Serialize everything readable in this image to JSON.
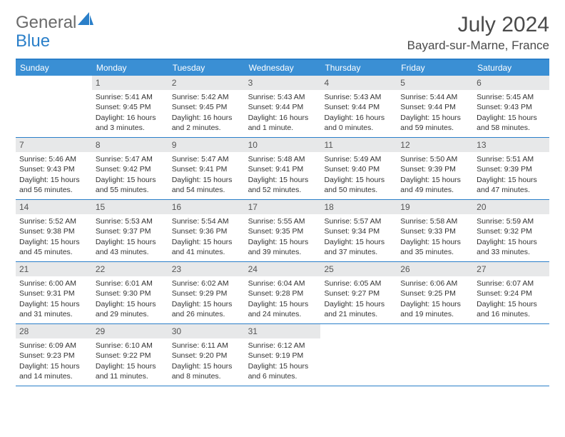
{
  "brand": {
    "part1": "General",
    "part2": "Blue"
  },
  "title": "July 2024",
  "location": "Bayard-sur-Marne, France",
  "colors": {
    "header_bar": "#3a8fd4",
    "header_border": "#2a7fc9",
    "daynum_bg": "#e7e8e9",
    "text": "#333333",
    "logo_gray": "#6a6a6a",
    "logo_blue": "#2a7fc9"
  },
  "days_of_week": [
    "Sunday",
    "Monday",
    "Tuesday",
    "Wednesday",
    "Thursday",
    "Friday",
    "Saturday"
  ],
  "weeks": [
    [
      {
        "n": "",
        "sunrise": "",
        "sunset": "",
        "daylight": ""
      },
      {
        "n": "1",
        "sunrise": "Sunrise: 5:41 AM",
        "sunset": "Sunset: 9:45 PM",
        "daylight": "Daylight: 16 hours and 3 minutes."
      },
      {
        "n": "2",
        "sunrise": "Sunrise: 5:42 AM",
        "sunset": "Sunset: 9:45 PM",
        "daylight": "Daylight: 16 hours and 2 minutes."
      },
      {
        "n": "3",
        "sunrise": "Sunrise: 5:43 AM",
        "sunset": "Sunset: 9:44 PM",
        "daylight": "Daylight: 16 hours and 1 minute."
      },
      {
        "n": "4",
        "sunrise": "Sunrise: 5:43 AM",
        "sunset": "Sunset: 9:44 PM",
        "daylight": "Daylight: 16 hours and 0 minutes."
      },
      {
        "n": "5",
        "sunrise": "Sunrise: 5:44 AM",
        "sunset": "Sunset: 9:44 PM",
        "daylight": "Daylight: 15 hours and 59 minutes."
      },
      {
        "n": "6",
        "sunrise": "Sunrise: 5:45 AM",
        "sunset": "Sunset: 9:43 PM",
        "daylight": "Daylight: 15 hours and 58 minutes."
      }
    ],
    [
      {
        "n": "7",
        "sunrise": "Sunrise: 5:46 AM",
        "sunset": "Sunset: 9:43 PM",
        "daylight": "Daylight: 15 hours and 56 minutes."
      },
      {
        "n": "8",
        "sunrise": "Sunrise: 5:47 AM",
        "sunset": "Sunset: 9:42 PM",
        "daylight": "Daylight: 15 hours and 55 minutes."
      },
      {
        "n": "9",
        "sunrise": "Sunrise: 5:47 AM",
        "sunset": "Sunset: 9:41 PM",
        "daylight": "Daylight: 15 hours and 54 minutes."
      },
      {
        "n": "10",
        "sunrise": "Sunrise: 5:48 AM",
        "sunset": "Sunset: 9:41 PM",
        "daylight": "Daylight: 15 hours and 52 minutes."
      },
      {
        "n": "11",
        "sunrise": "Sunrise: 5:49 AM",
        "sunset": "Sunset: 9:40 PM",
        "daylight": "Daylight: 15 hours and 50 minutes."
      },
      {
        "n": "12",
        "sunrise": "Sunrise: 5:50 AM",
        "sunset": "Sunset: 9:39 PM",
        "daylight": "Daylight: 15 hours and 49 minutes."
      },
      {
        "n": "13",
        "sunrise": "Sunrise: 5:51 AM",
        "sunset": "Sunset: 9:39 PM",
        "daylight": "Daylight: 15 hours and 47 minutes."
      }
    ],
    [
      {
        "n": "14",
        "sunrise": "Sunrise: 5:52 AM",
        "sunset": "Sunset: 9:38 PM",
        "daylight": "Daylight: 15 hours and 45 minutes."
      },
      {
        "n": "15",
        "sunrise": "Sunrise: 5:53 AM",
        "sunset": "Sunset: 9:37 PM",
        "daylight": "Daylight: 15 hours and 43 minutes."
      },
      {
        "n": "16",
        "sunrise": "Sunrise: 5:54 AM",
        "sunset": "Sunset: 9:36 PM",
        "daylight": "Daylight: 15 hours and 41 minutes."
      },
      {
        "n": "17",
        "sunrise": "Sunrise: 5:55 AM",
        "sunset": "Sunset: 9:35 PM",
        "daylight": "Daylight: 15 hours and 39 minutes."
      },
      {
        "n": "18",
        "sunrise": "Sunrise: 5:57 AM",
        "sunset": "Sunset: 9:34 PM",
        "daylight": "Daylight: 15 hours and 37 minutes."
      },
      {
        "n": "19",
        "sunrise": "Sunrise: 5:58 AM",
        "sunset": "Sunset: 9:33 PM",
        "daylight": "Daylight: 15 hours and 35 minutes."
      },
      {
        "n": "20",
        "sunrise": "Sunrise: 5:59 AM",
        "sunset": "Sunset: 9:32 PM",
        "daylight": "Daylight: 15 hours and 33 minutes."
      }
    ],
    [
      {
        "n": "21",
        "sunrise": "Sunrise: 6:00 AM",
        "sunset": "Sunset: 9:31 PM",
        "daylight": "Daylight: 15 hours and 31 minutes."
      },
      {
        "n": "22",
        "sunrise": "Sunrise: 6:01 AM",
        "sunset": "Sunset: 9:30 PM",
        "daylight": "Daylight: 15 hours and 29 minutes."
      },
      {
        "n": "23",
        "sunrise": "Sunrise: 6:02 AM",
        "sunset": "Sunset: 9:29 PM",
        "daylight": "Daylight: 15 hours and 26 minutes."
      },
      {
        "n": "24",
        "sunrise": "Sunrise: 6:04 AM",
        "sunset": "Sunset: 9:28 PM",
        "daylight": "Daylight: 15 hours and 24 minutes."
      },
      {
        "n": "25",
        "sunrise": "Sunrise: 6:05 AM",
        "sunset": "Sunset: 9:27 PM",
        "daylight": "Daylight: 15 hours and 21 minutes."
      },
      {
        "n": "26",
        "sunrise": "Sunrise: 6:06 AM",
        "sunset": "Sunset: 9:25 PM",
        "daylight": "Daylight: 15 hours and 19 minutes."
      },
      {
        "n": "27",
        "sunrise": "Sunrise: 6:07 AM",
        "sunset": "Sunset: 9:24 PM",
        "daylight": "Daylight: 15 hours and 16 minutes."
      }
    ],
    [
      {
        "n": "28",
        "sunrise": "Sunrise: 6:09 AM",
        "sunset": "Sunset: 9:23 PM",
        "daylight": "Daylight: 15 hours and 14 minutes."
      },
      {
        "n": "29",
        "sunrise": "Sunrise: 6:10 AM",
        "sunset": "Sunset: 9:22 PM",
        "daylight": "Daylight: 15 hours and 11 minutes."
      },
      {
        "n": "30",
        "sunrise": "Sunrise: 6:11 AM",
        "sunset": "Sunset: 9:20 PM",
        "daylight": "Daylight: 15 hours and 8 minutes."
      },
      {
        "n": "31",
        "sunrise": "Sunrise: 6:12 AM",
        "sunset": "Sunset: 9:19 PM",
        "daylight": "Daylight: 15 hours and 6 minutes."
      },
      {
        "n": "",
        "sunrise": "",
        "sunset": "",
        "daylight": ""
      },
      {
        "n": "",
        "sunrise": "",
        "sunset": "",
        "daylight": ""
      },
      {
        "n": "",
        "sunrise": "",
        "sunset": "",
        "daylight": ""
      }
    ]
  ]
}
